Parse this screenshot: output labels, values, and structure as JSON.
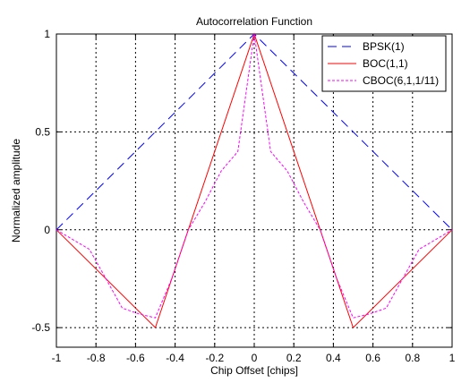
{
  "chart_data": {
    "type": "line",
    "title": "Autocorrelation Function",
    "xlabel": "Chip Offset [chips]",
    "ylabel": "Normalized amplitude",
    "xlim": [
      -1,
      1
    ],
    "ylim": [
      -0.6,
      1
    ],
    "xticks": [
      -1,
      -0.8,
      -0.6,
      -0.4,
      -0.2,
      0,
      0.2,
      0.4,
      0.6,
      0.8,
      1
    ],
    "xtick_labels": [
      "-1",
      "-0.8",
      "-0.6",
      "-0.4",
      "-0.2",
      "0",
      "0.2",
      "0.4",
      "0.6",
      "0.8",
      "1"
    ],
    "yticks": [
      -0.5,
      0,
      0.5,
      1
    ],
    "ytick_labels": [
      "-0.5",
      "0",
      "0.5",
      "1"
    ],
    "grid": true,
    "legend_position": "top-right",
    "series": [
      {
        "name": "BPSK(1)",
        "color": "#0000ff",
        "style": "dashed-long",
        "x": [
          -1,
          0,
          1
        ],
        "y": [
          0,
          1,
          0
        ]
      },
      {
        "name": "BOC(1,1)",
        "color": "#ff0000",
        "style": "solid",
        "x": [
          -1,
          -0.5,
          0,
          0.5,
          1
        ],
        "y": [
          0,
          -0.5,
          1,
          -0.5,
          0
        ]
      },
      {
        "name": "CBOC(6,1,1/11)",
        "color": "#ff00ff",
        "style": "dashed",
        "x": [
          -1,
          -0.917,
          -0.833,
          -0.75,
          -0.667,
          -0.583,
          -0.5,
          -0.417,
          -0.333,
          -0.25,
          -0.167,
          -0.083,
          0,
          0.083,
          0.167,
          0.25,
          0.333,
          0.417,
          0.5,
          0.583,
          0.667,
          0.75,
          0.833,
          0.917,
          1
        ],
        "y": [
          0,
          -0.05,
          -0.1,
          -0.25,
          -0.4,
          -0.43,
          -0.45,
          -0.25,
          0,
          0.14,
          0.3,
          0.4,
          1,
          0.4,
          0.3,
          0.14,
          0,
          -0.25,
          -0.45,
          -0.43,
          -0.4,
          -0.25,
          -0.1,
          -0.05,
          0
        ]
      }
    ]
  }
}
